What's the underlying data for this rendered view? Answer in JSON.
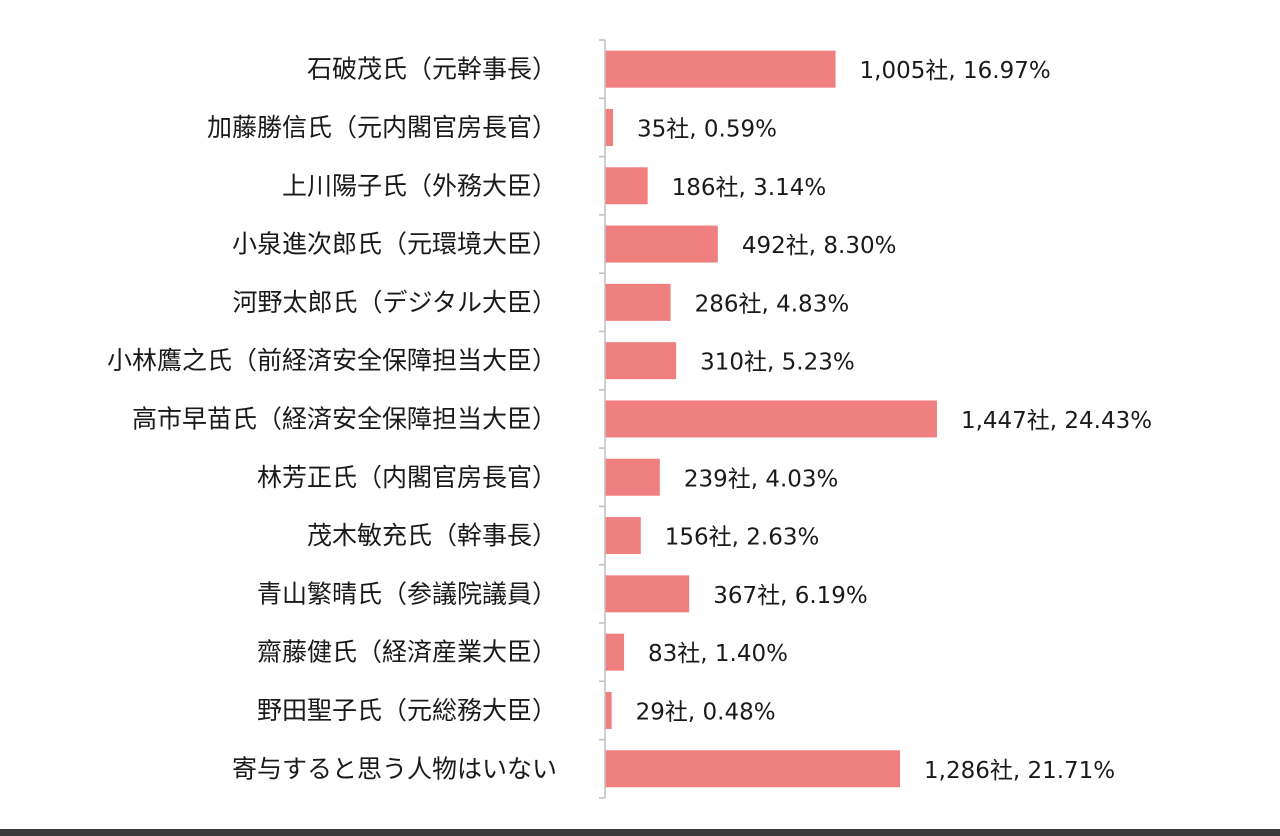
{
  "chart_data": {
    "type": "bar",
    "orientation": "horizontal",
    "title": "",
    "xlabel": "",
    "ylabel": "",
    "grid": false,
    "legend": "none",
    "bar_color": "#f08080",
    "axis_color": "#bfbfbf",
    "value_unit": "社",
    "categories": [
      "石破茂氏（元幹事長）",
      "加藤勝信氏（元内閣官房長官）",
      "上川陽子氏（外務大臣）",
      "小泉進次郎氏（元環境大臣）",
      "河野太郎氏（デジタル大臣）",
      "小林鷹之氏（前経済安全保障担当大臣）",
      "高市早苗氏（経済安全保障担当大臣）",
      "林芳正氏（内閣官房長官）",
      "茂木敏充氏（幹事長）",
      "青山繁晴氏（参議院議員）",
      "齋藤健氏（経済産業大臣）",
      "野田聖子氏（元総務大臣）",
      "寄与すると思う人物はいない"
    ],
    "values": [
      1005,
      35,
      186,
      492,
      286,
      310,
      1447,
      239,
      156,
      367,
      83,
      29,
      1286
    ],
    "percentages": [
      16.97,
      0.59,
      3.14,
      8.3,
      4.83,
      5.23,
      24.43,
      4.03,
      2.63,
      6.19,
      1.4,
      0.48,
      21.71
    ],
    "data_labels": [
      "1,005社, 16.97%",
      "35社, 0.59%",
      "186社, 3.14%",
      "492社, 8.30%",
      "286社, 4.83%",
      "310社, 5.23%",
      "1,447社, 24.43%",
      "239社, 4.03%",
      "156社, 2.63%",
      "367社, 6.19%",
      "83社, 1.40%",
      "29社, 0.48%",
      "1,286社, 21.71%"
    ]
  }
}
